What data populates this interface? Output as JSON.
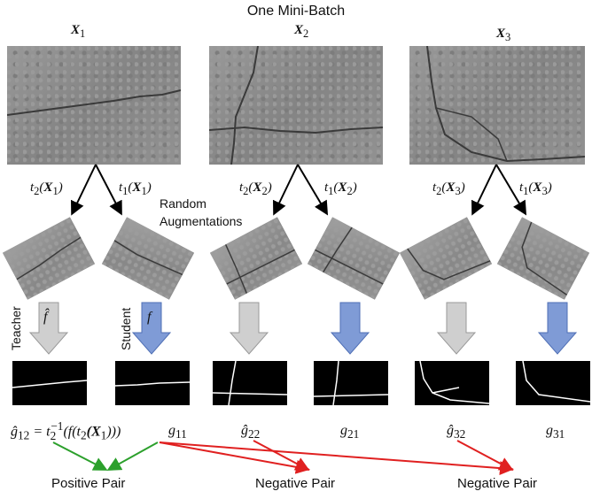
{
  "title": "One Mini-Batch",
  "inputs": [
    {
      "name": "X",
      "sub": "1"
    },
    {
      "name": "X",
      "sub": "2"
    },
    {
      "name": "X",
      "sub": "3"
    }
  ],
  "transforms": [
    {
      "t": "t",
      "ti": "2",
      "x": "X",
      "xi": "1"
    },
    {
      "t": "t",
      "ti": "1",
      "x": "X",
      "xi": "1"
    },
    {
      "t": "t",
      "ti": "2",
      "x": "X",
      "xi": "2"
    },
    {
      "t": "t",
      "ti": "1",
      "x": "X",
      "xi": "2"
    },
    {
      "t": "t",
      "ti": "2",
      "x": "X",
      "xi": "3"
    },
    {
      "t": "t",
      "ti": "1",
      "x": "X",
      "xi": "3"
    }
  ],
  "random_aug_line1": "Random",
  "random_aug_line2": "Augmentations",
  "teacher_label": "Teacher",
  "student_label": "Student",
  "teacher_fn": "f̂",
  "student_fn": "f",
  "outputs": [
    {
      "g": "ĝ",
      "sub": "12"
    },
    {
      "g": "g",
      "sub": "11"
    },
    {
      "g": "ĝ",
      "sub": "22"
    },
    {
      "g": "g",
      "sub": "21"
    },
    {
      "g": "ĝ",
      "sub": "32"
    },
    {
      "g": "g",
      "sub": "31"
    }
  ],
  "g12_formula": {
    "eq": "= t",
    "sup": "−1",
    "sub": "2",
    "rest": "(f(t",
    "rest_sub": "2",
    "rest2": "(X",
    "rest2_sub": "1",
    "rest3": ")))"
  },
  "pairs": [
    "Positive Pair",
    "Negative Pair",
    "Negative Pair"
  ],
  "colors": {
    "teacher_arrow": "#cccccc",
    "student_arrow": "#7f9bd6",
    "positive": "#2ca02c",
    "negative": "#e02020"
  }
}
